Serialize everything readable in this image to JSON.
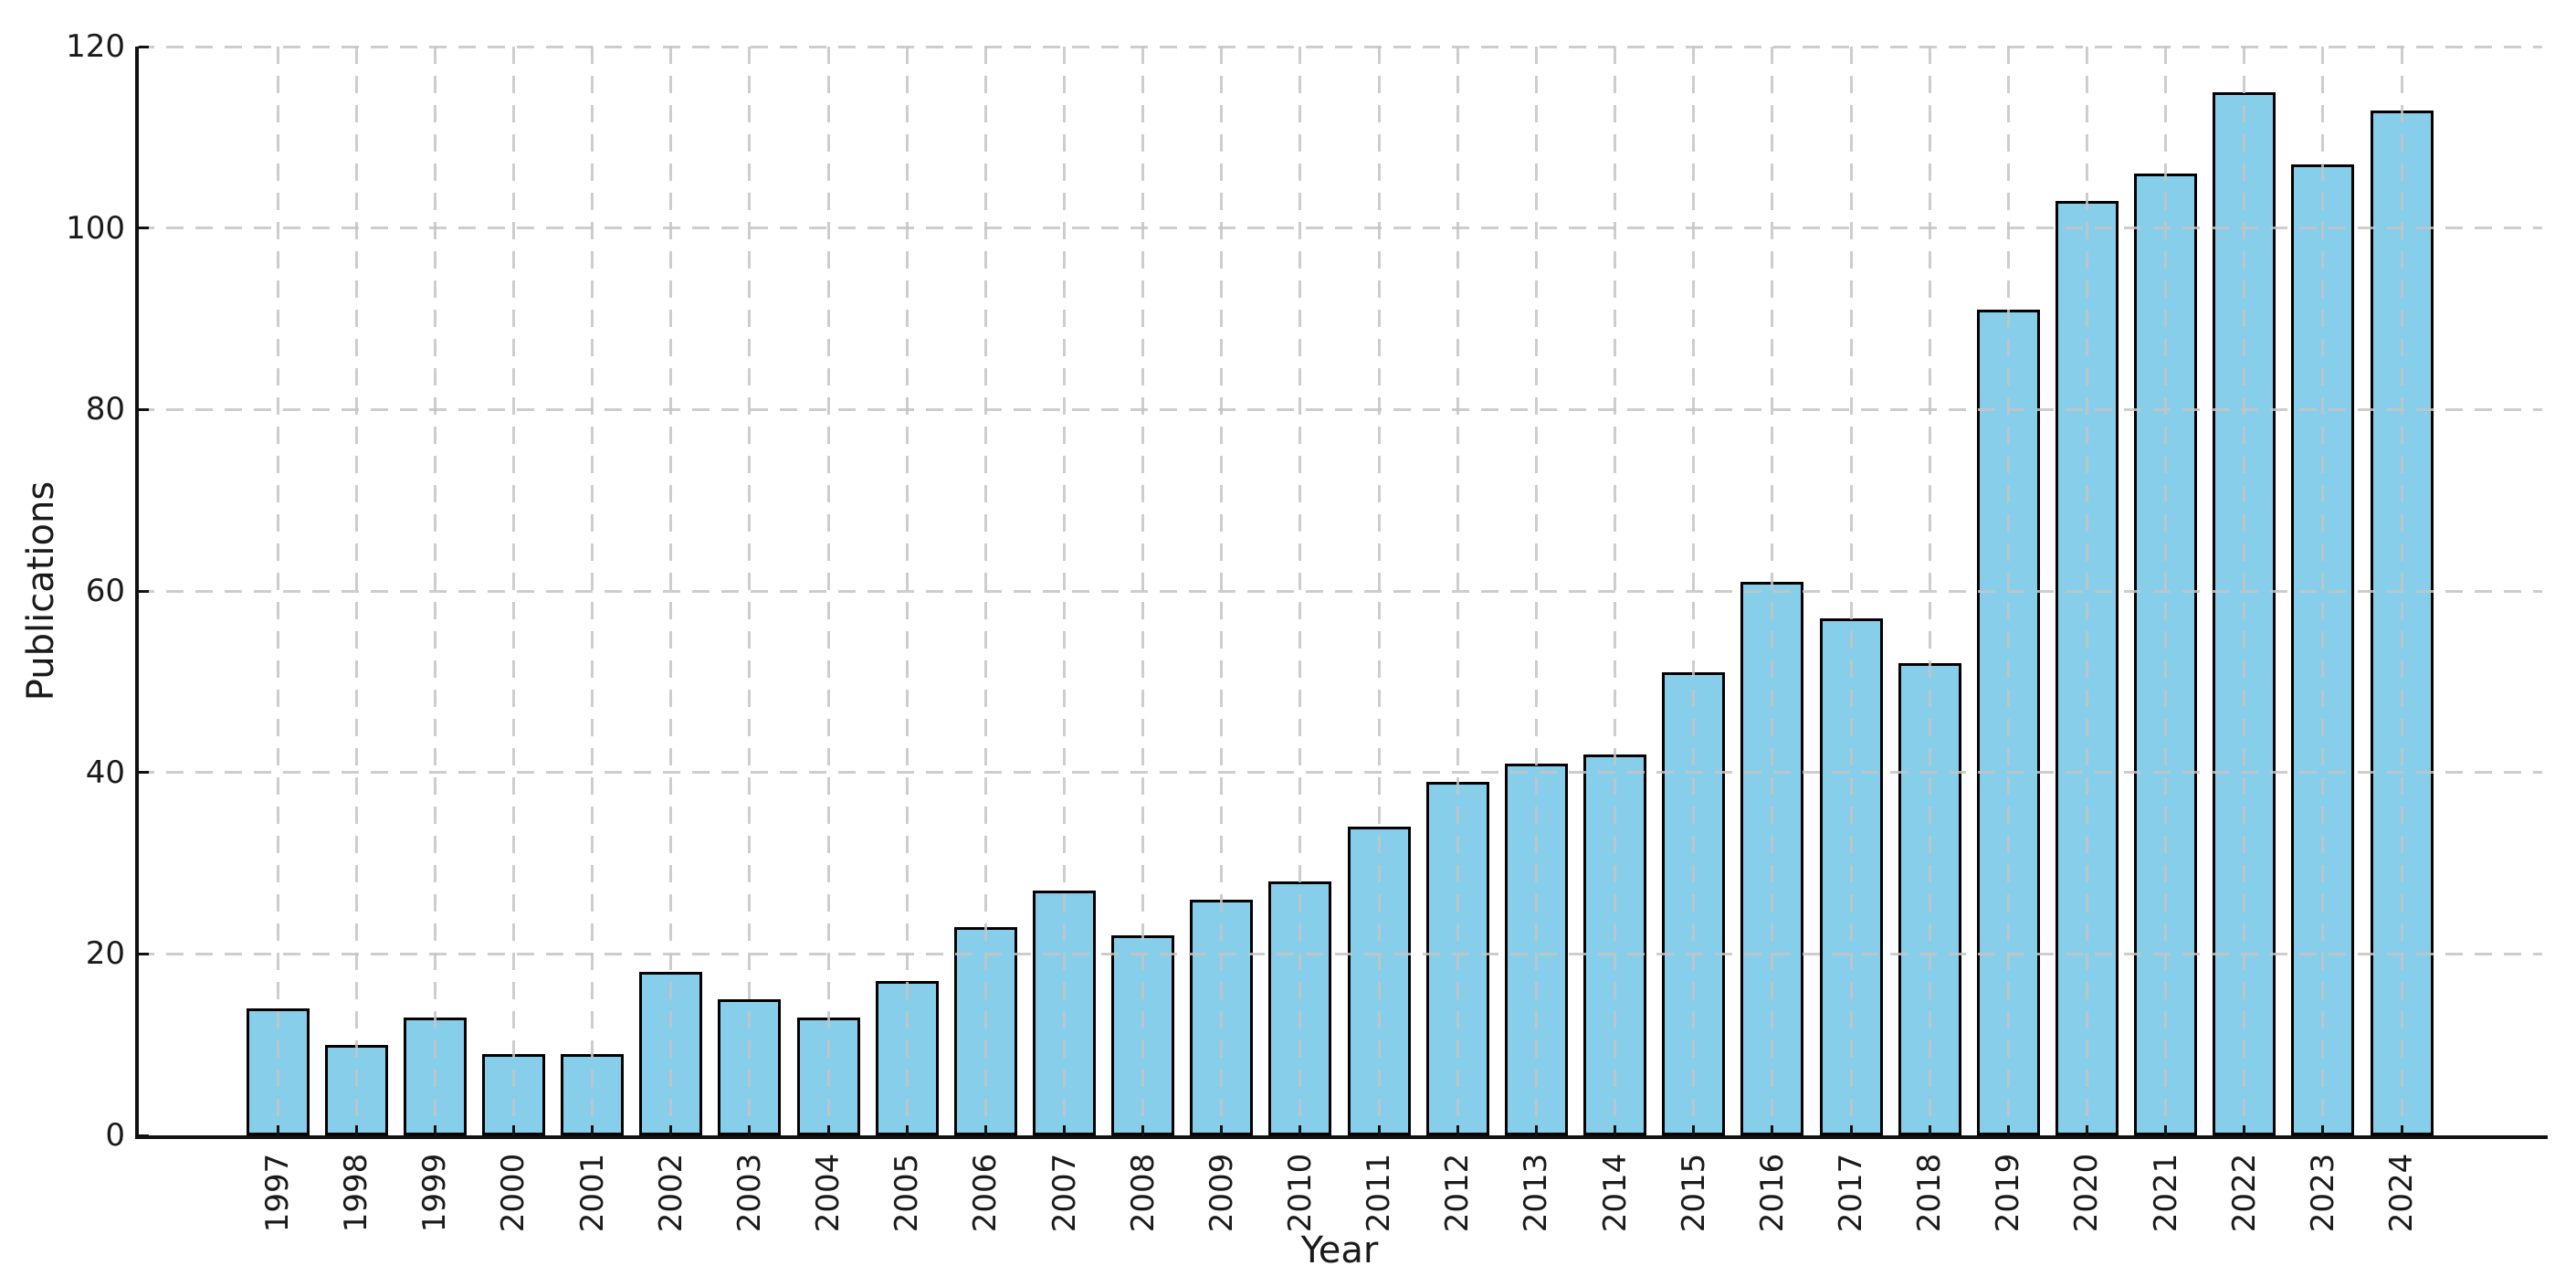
{
  "chart_data": {
    "type": "bar",
    "title": "",
    "xlabel": "Year",
    "ylabel": "Publications",
    "categories": [
      "1997",
      "1998",
      "1999",
      "2000",
      "2001",
      "2002",
      "2003",
      "2004",
      "2005",
      "2006",
      "2007",
      "2008",
      "2009",
      "2010",
      "2011",
      "2012",
      "2013",
      "2014",
      "2015",
      "2016",
      "2017",
      "2018",
      "2019",
      "2020",
      "2021",
      "2022",
      "2023",
      "2024"
    ],
    "values": [
      14,
      10,
      13,
      9,
      9,
      18,
      15,
      13,
      17,
      23,
      27,
      22,
      26,
      28,
      34,
      39,
      41,
      42,
      51,
      61,
      57,
      52,
      91,
      103,
      106,
      115,
      107,
      113
    ],
    "ylim": [
      0,
      120
    ],
    "yticks": [
      "0",
      "20",
      "40",
      "60",
      "80",
      "100",
      "120"
    ],
    "grid": "dashed, both axes, drawn over bars",
    "legend_position": "none",
    "bar_color": "#87CEEB",
    "bar_edge_color": "#000000",
    "grid_color": "#c4c4c4",
    "spine_color": "#111111",
    "text_color": "#1a1a1a",
    "background_color": "#ffffff"
  }
}
